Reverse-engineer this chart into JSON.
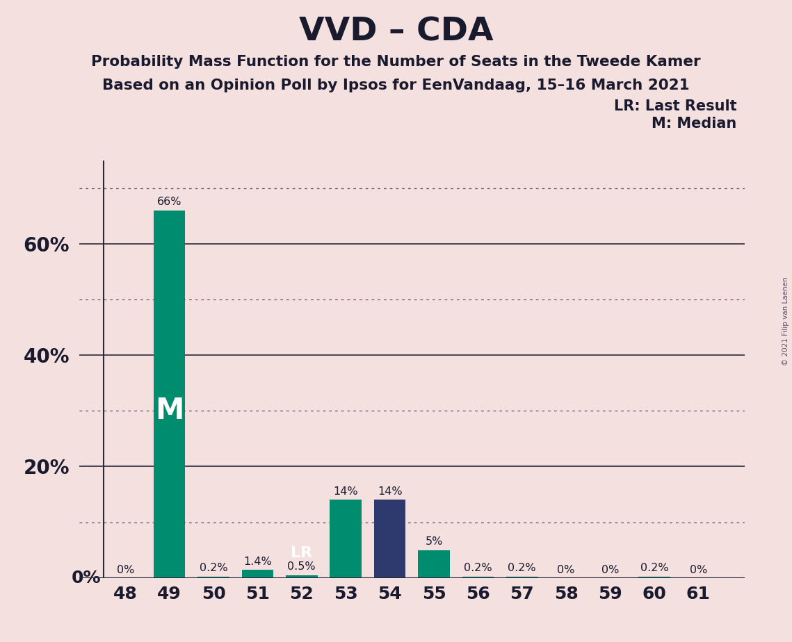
{
  "title": "VVD – CDA",
  "subtitle1": "Probability Mass Function for the Number of Seats in the Tweede Kamer",
  "subtitle2": "Based on an Opinion Poll by Ipsos for EenVandaag, 15–16 March 2021",
  "copyright": "© 2021 Filip van Laenen",
  "categories": [
    48,
    49,
    50,
    51,
    52,
    53,
    54,
    55,
    56,
    57,
    58,
    59,
    60,
    61
  ],
  "values": [
    0.0,
    66.0,
    0.2,
    1.4,
    0.5,
    14.0,
    14.0,
    5.0,
    0.2,
    0.2,
    0.0,
    0.0,
    0.2,
    0.0
  ],
  "labels": [
    "0%",
    "66%",
    "0.2%",
    "1.4%",
    "0.5%",
    "14%",
    "14%",
    "5%",
    "0.2%",
    "0.2%",
    "0%",
    "0%",
    "0.2%",
    "0%"
  ],
  "bar_colors": [
    "#008c6e",
    "#008c6e",
    "#008c6e",
    "#008c6e",
    "#008c6e",
    "#008c6e",
    "#2e3a6e",
    "#008c6e",
    "#008c6e",
    "#008c6e",
    "#008c6e",
    "#008c6e",
    "#008c6e",
    "#008c6e"
  ],
  "median_bar": 49,
  "last_result_bar": 52,
  "background_color": "#f5e0e0",
  "text_color": "#1a1a2e",
  "ylim": [
    0,
    75
  ],
  "solid_yticks": [
    20,
    40,
    60
  ],
  "dotted_yticks": [
    10,
    30,
    50,
    70
  ],
  "ytick_labels": [
    "20%",
    "40%",
    "60%"
  ],
  "zero_label": "0%",
  "legend_text1": "LR: Last Result",
  "legend_text2": "M: Median",
  "median_label": "M",
  "lr_label": "LR"
}
